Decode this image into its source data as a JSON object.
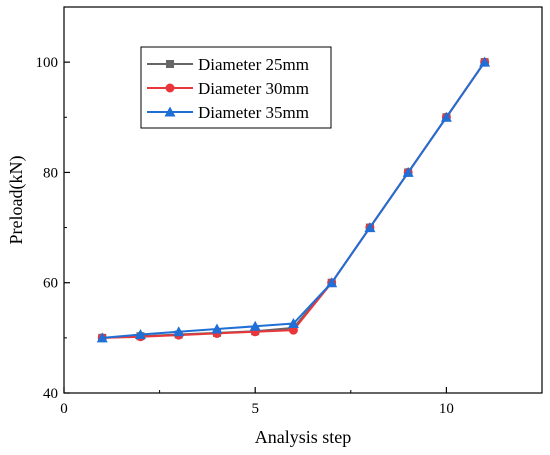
{
  "chart_data": {
    "type": "line",
    "title": "",
    "xlabel": "Analysis step",
    "ylabel": "Preload(kN)",
    "xlim": [
      0,
      12.5
    ],
    "ylim": [
      40,
      110
    ],
    "xticks": [
      0,
      5,
      10
    ],
    "yticks": [
      40,
      60,
      80,
      100
    ],
    "grid": false,
    "legend_position": "top-left",
    "x": [
      1,
      2,
      3,
      4,
      5,
      6,
      7,
      8,
      9,
      10,
      11
    ],
    "series": [
      {
        "name": "Diameter 25mm",
        "marker": "square",
        "color": "#666666",
        "values": [
          50.0,
          50.3,
          50.6,
          50.9,
          51.2,
          51.8,
          60.0,
          70.0,
          80.0,
          90.0,
          100.0
        ]
      },
      {
        "name": "Diameter 30mm",
        "marker": "circle",
        "color": "#e8373a",
        "values": [
          50.0,
          50.2,
          50.5,
          50.8,
          51.1,
          51.4,
          60.0,
          70.0,
          80.0,
          90.0,
          100.0
        ]
      },
      {
        "name": "Diameter 35mm",
        "marker": "triangle",
        "color": "#1f6fd6",
        "values": [
          50.0,
          50.6,
          51.1,
          51.6,
          52.1,
          52.6,
          60.0,
          70.0,
          80.0,
          90.0,
          100.0
        ]
      }
    ]
  }
}
